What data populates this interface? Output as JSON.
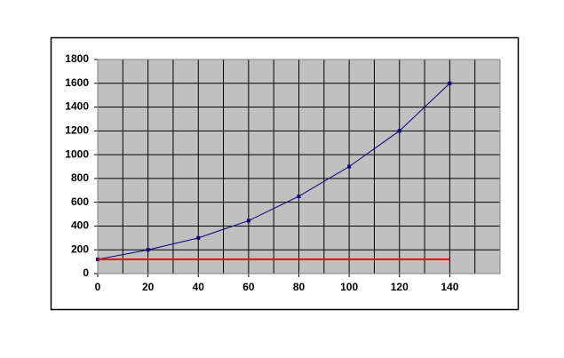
{
  "chart_data": {
    "type": "line",
    "series": [
      {
        "x": [
          0,
          20,
          40,
          60,
          80,
          100,
          120,
          140
        ],
        "values": [
          120,
          200,
          300,
          445,
          650,
          900,
          1200,
          1600
        ],
        "color": "#000080",
        "markers": true
      },
      {
        "x": [
          0,
          140
        ],
        "values": [
          120,
          120
        ],
        "color": "#ff0000",
        "markers": false
      }
    ],
    "xlim": [
      0,
      160
    ],
    "xticks": [
      0,
      20,
      40,
      60,
      80,
      100,
      120,
      140
    ],
    "xminor": [
      10,
      30,
      50,
      70,
      90,
      110,
      130,
      150,
      160
    ],
    "ylim": [
      0,
      1800
    ],
    "yticks": [
      0,
      200,
      400,
      600,
      800,
      1000,
      1200,
      1400,
      1600,
      1800
    ],
    "grid": true,
    "plot_background": "#c0c0c0"
  }
}
